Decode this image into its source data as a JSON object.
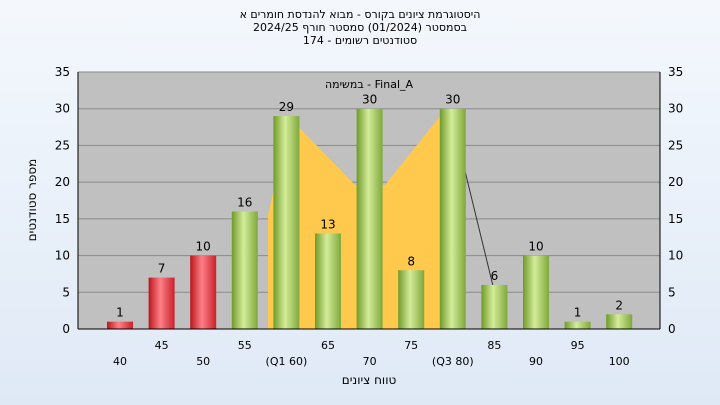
{
  "chart_data": {
    "type": "bar",
    "title_lines": [
      "היסטוגרמת ציונים בקורס - מבוא להנדסת חומרים א",
      "בסמסטר  (01/2024)  סמסטר חורף 2024/25",
      "סטודנטים רשומים - 174"
    ],
    "annotation": "Final_A - במשימה",
    "xlabel": "טווח ציונים",
    "ylabel": "מספר סטודנטים",
    "categories": [
      "40",
      "45",
      "50",
      "55",
      "(Q1 60)",
      "65",
      "70",
      "75",
      "(Q3 80)",
      "85",
      "90",
      "95",
      "100"
    ],
    "values": [
      1,
      7,
      10,
      16,
      29,
      13,
      30,
      8,
      30,
      6,
      10,
      1,
      2
    ],
    "colors": [
      "red",
      "red",
      "red",
      "green",
      "green",
      "green",
      "green",
      "green",
      "green",
      "green",
      "green",
      "green",
      "green"
    ],
    "ylim": [
      0,
      35
    ],
    "yticks": [
      0,
      5,
      10,
      15,
      20,
      25,
      30,
      35
    ],
    "grid": true
  }
}
